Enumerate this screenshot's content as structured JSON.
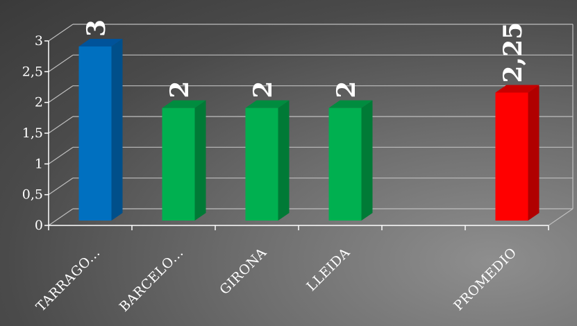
{
  "chart_data": {
    "type": "bar",
    "categories": [
      "TARRAGO...",
      "BARCELO...",
      "GIRONA",
      "LLEIDA",
      "",
      "PROMEDIO"
    ],
    "values": [
      3,
      2,
      2,
      2,
      null,
      2.25
    ],
    "data_labels": [
      "3",
      "2",
      "2",
      "2",
      "",
      "2,25"
    ],
    "bar_colors": [
      "#0070c0",
      "#00b050",
      "#00b050",
      "#00b050",
      "",
      "#ff0000"
    ],
    "side_colors": [
      "#004f8a",
      "#007a36",
      "#007a36",
      "#007a36",
      "",
      "#b00000"
    ],
    "top_colors": [
      "#00539a",
      "#008c3f",
      "#008c3f",
      "#008c3f",
      "",
      "#c80000"
    ],
    "y_ticks": [
      "0",
      "0,5",
      "1",
      "1,5",
      "2",
      "2,5",
      "3"
    ],
    "ylim": [
      0,
      3
    ],
    "grid": true,
    "title": "",
    "xlabel": "",
    "ylabel": ""
  }
}
